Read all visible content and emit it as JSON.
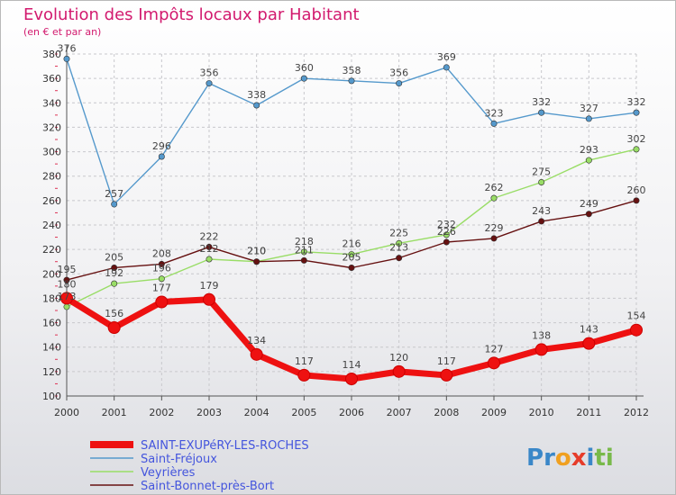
{
  "chart_data": {
    "type": "line",
    "title": "Evolution des Impôts locaux par Habitant",
    "subtitle": "(en € et par an)",
    "x": [
      "2000",
      "2001",
      "2002",
      "2003",
      "2004",
      "2005",
      "2006",
      "2007",
      "2008",
      "2009",
      "2010",
      "2011",
      "2012"
    ],
    "ylim": [
      100,
      380
    ],
    "yticks": [
      100,
      120,
      140,
      160,
      180,
      200,
      220,
      240,
      260,
      280,
      300,
      320,
      340,
      360,
      380
    ],
    "grid": true,
    "legend_position": "bottom-left",
    "series": [
      {
        "name": "SAINT-EXUPéRY-LES-ROCHES",
        "color": "#ee1111",
        "values": [
          180,
          156,
          177,
          179,
          134,
          117,
          114,
          120,
          117,
          127,
          138,
          143,
          154
        ]
      },
      {
        "name": "Saint-Fréjoux",
        "color": "#5599cc",
        "values": [
          376,
          257,
          296,
          356,
          338,
          360,
          358,
          356,
          369,
          323,
          332,
          327,
          332
        ]
      },
      {
        "name": "Veyrières",
        "color": "#99dd66",
        "values": [
          173,
          192,
          196,
          212,
          210,
          218,
          216,
          225,
          232,
          262,
          275,
          293,
          302
        ]
      },
      {
        "name": "Saint-Bonnet-près-Bort",
        "color": "#661111",
        "values": [
          195,
          205,
          208,
          222,
          210,
          211,
          205,
          213,
          226,
          229,
          243,
          249,
          260
        ]
      }
    ]
  },
  "brand": {
    "letters": [
      "P",
      "r",
      "o",
      "x",
      "i",
      "t",
      "i"
    ],
    "colors": [
      "#3a87c8",
      "#3a87c8",
      "#f0a020",
      "#e63c2a",
      "#3a87c8",
      "#78b94a",
      "#78b94a"
    ]
  }
}
